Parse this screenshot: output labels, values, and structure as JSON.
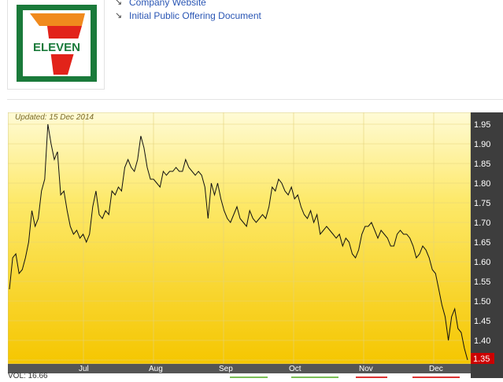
{
  "links": [
    {
      "label": "Company Website"
    },
    {
      "label": "Initial Public Offering Document"
    }
  ],
  "logo": {
    "brand_text": "ELEVEN",
    "numeral": "7"
  },
  "chart": {
    "updated_label": "Updated: 15 Dec 2014",
    "current_value_label": "1.35",
    "vol_label": "VOL: 16.66"
  },
  "chart_data": {
    "type": "line",
    "title": "",
    "xlabel": "",
    "ylabel": "",
    "ylim": [
      1.34,
      1.98
    ],
    "yticks": [
      1.35,
      1.4,
      1.45,
      1.5,
      1.55,
      1.6,
      1.65,
      1.7,
      1.75,
      1.8,
      1.85,
      1.9,
      1.95
    ],
    "ytick_labels": [
      "1.35",
      "1.40",
      "1.45",
      "1.50",
      "1.55",
      "1.60",
      "1.65",
      "1.70",
      "1.75",
      "1.80",
      "1.85",
      "1.90",
      "1.95"
    ],
    "xticks": [
      "Jul",
      "Aug",
      "Sep",
      "Oct",
      "Nov",
      "Dec"
    ],
    "grid": true,
    "series": [
      {
        "values": [
          1.53,
          1.61,
          1.62,
          1.57,
          1.58,
          1.61,
          1.65,
          1.73,
          1.69,
          1.71,
          1.78,
          1.81,
          1.95,
          1.9,
          1.86,
          1.88,
          1.77,
          1.78,
          1.73,
          1.69,
          1.67,
          1.68,
          1.66,
          1.67,
          1.65,
          1.67,
          1.74,
          1.78,
          1.72,
          1.71,
          1.73,
          1.72,
          1.78,
          1.77,
          1.79,
          1.78,
          1.84,
          1.86,
          1.84,
          1.83,
          1.86,
          1.92,
          1.89,
          1.84,
          1.81,
          1.81,
          1.8,
          1.79,
          1.83,
          1.82,
          1.83,
          1.83,
          1.84,
          1.83,
          1.83,
          1.86,
          1.84,
          1.83,
          1.82,
          1.83,
          1.82,
          1.79,
          1.71,
          1.8,
          1.77,
          1.8,
          1.76,
          1.73,
          1.71,
          1.7,
          1.72,
          1.74,
          1.71,
          1.7,
          1.69,
          1.73,
          1.71,
          1.7,
          1.71,
          1.72,
          1.71,
          1.74,
          1.79,
          1.78,
          1.81,
          1.8,
          1.78,
          1.77,
          1.79,
          1.76,
          1.77,
          1.74,
          1.72,
          1.71,
          1.73,
          1.7,
          1.72,
          1.67,
          1.68,
          1.69,
          1.68,
          1.67,
          1.66,
          1.67,
          1.64,
          1.66,
          1.65,
          1.62,
          1.61,
          1.63,
          1.67,
          1.69,
          1.69,
          1.7,
          1.68,
          1.66,
          1.68,
          1.67,
          1.66,
          1.64,
          1.64,
          1.67,
          1.68,
          1.67,
          1.67,
          1.66,
          1.64,
          1.61,
          1.62,
          1.64,
          1.63,
          1.61,
          1.58,
          1.57,
          1.53,
          1.49,
          1.46,
          1.4,
          1.46,
          1.48,
          1.43,
          1.42,
          1.38,
          1.35
        ]
      }
    ]
  },
  "colors": {
    "brand_green": "#1a7a3a",
    "brand_orange": "#f08a1d",
    "brand_red": "#e2231a",
    "link": "#2a56b4",
    "plot_top": "#fffbd6",
    "plot_bottom": "#f5c600",
    "axis_panel": "#3d3d3d",
    "current_value": "#cc0000"
  }
}
